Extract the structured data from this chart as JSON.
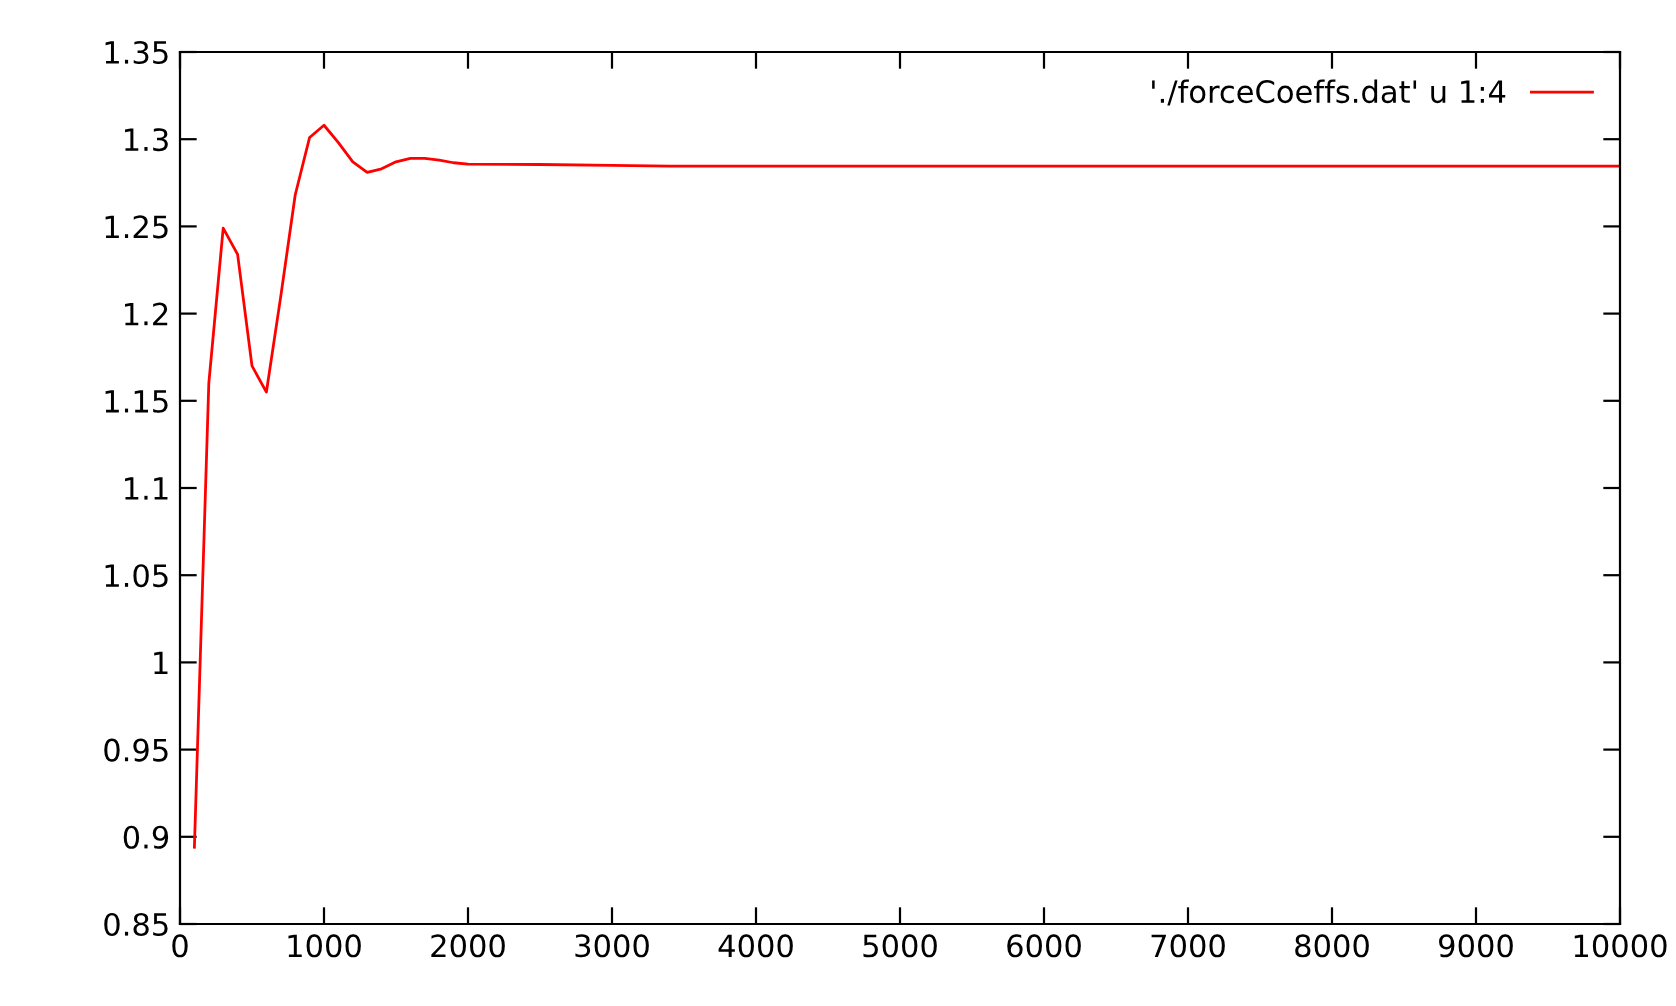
{
  "chart_data": {
    "type": "line",
    "xlim": [
      0,
      10000
    ],
    "xticks": [
      0,
      1000,
      2000,
      3000,
      4000,
      5000,
      6000,
      7000,
      8000,
      9000,
      10000
    ],
    "ylim": [
      0.85,
      1.35
    ],
    "yticks": [
      0.85,
      0.9,
      0.95,
      1,
      1.05,
      1.1,
      1.15,
      1.2,
      1.25,
      1.3,
      1.35
    ],
    "grid": false,
    "legend": "top right",
    "marker": "none",
    "line_style": "solid",
    "series": [
      {
        "name": "'./forceCoeffs.dat' u 1:4",
        "color": "#ff0000",
        "x": [
          100,
          200,
          300,
          400,
          500,
          600,
          700,
          800,
          900,
          1000,
          1100,
          1200,
          1300,
          1400,
          1500,
          1600,
          1700,
          1800,
          1900,
          2000,
          2500,
          3000,
          3400,
          10000
        ],
        "values": [
          0.894,
          1.16,
          1.249,
          1.234,
          1.17,
          1.155,
          1.21,
          1.268,
          1.301,
          1.308,
          1.298,
          1.287,
          1.281,
          1.283,
          1.287,
          1.289,
          1.289,
          1.288,
          1.2865,
          1.2857,
          1.2855,
          1.285,
          1.2845,
          1.2845
        ]
      }
    ]
  }
}
